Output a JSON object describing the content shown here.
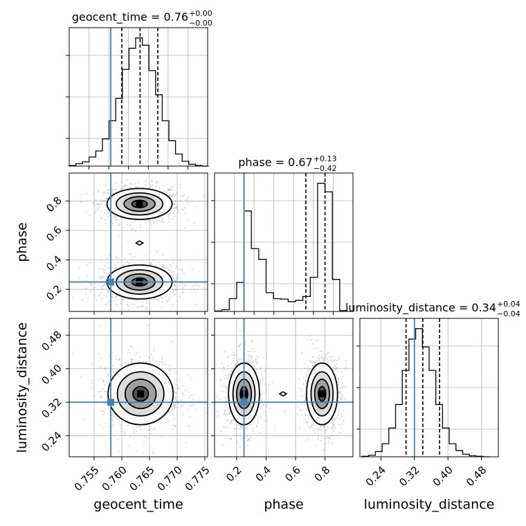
{
  "figure": {
    "kind": "corner-plot",
    "truth_color": "#4682b4",
    "grid": true,
    "scatter_color": "#9e9e9e",
    "contour_color": "#000000"
  },
  "chart_data": [
    {
      "type": "histogram",
      "parameter": "geocent_time",
      "title": {
        "main": "geocent_time = 0.76",
        "sup": "+0.00",
        "sub": "−0.00"
      },
      "xlim": [
        0.7505,
        0.7755
      ],
      "truth": 0.758,
      "quantiles": [
        0.76,
        0.7633,
        0.7665
      ],
      "bins": [
        0.7505,
        0.7517,
        0.7529,
        0.7541,
        0.7553,
        0.7565,
        0.7577,
        0.7589,
        0.7601,
        0.7613,
        0.7625,
        0.7637,
        0.7649,
        0.7661,
        0.7673,
        0.7685,
        0.7697,
        0.7709,
        0.7721,
        0.7733,
        0.7745,
        0.7757
      ],
      "counts": [
        1,
        4,
        7,
        15,
        25,
        45,
        75,
        112,
        160,
        195,
        212,
        200,
        158,
        118,
        75,
        42,
        20,
        8,
        3,
        1,
        0
      ]
    },
    {
      "type": "scatter-contour",
      "x": "geocent_time",
      "y": "phase",
      "xlim": [
        0.7505,
        0.7755
      ],
      "ylim": [
        0.05,
        0.99
      ],
      "ytick_labels": [
        "0.2",
        "0.4",
        "0.6",
        "0.8"
      ],
      "yticks": [
        0.2,
        0.4,
        0.6,
        0.8
      ],
      "ylabel": "phase",
      "truth": [
        0.758,
        0.25
      ],
      "modes": [
        {
          "center": [
            0.7632,
            0.78
          ],
          "spread": [
            0.0028,
            0.05
          ]
        },
        {
          "center": [
            0.7632,
            0.25
          ],
          "spread": [
            0.0028,
            0.055
          ]
        }
      ]
    },
    {
      "type": "histogram",
      "parameter": "phase",
      "title": {
        "main": "phase = 0.67",
        "sup": "+0.13",
        "sub": "−0.42"
      },
      "xlim": [
        0.05,
        0.99
      ],
      "truth": 0.25,
      "quantiles": [
        0.25,
        0.67,
        0.8
      ],
      "bins": [
        0.05,
        0.1,
        0.15,
        0.2,
        0.25,
        0.3,
        0.35,
        0.4,
        0.45,
        0.5,
        0.55,
        0.6,
        0.65,
        0.7,
        0.75,
        0.8,
        0.85,
        0.9,
        0.95
      ],
      "counts": [
        1,
        4,
        30,
        68,
        235,
        147,
        122,
        44,
        30,
        29,
        23,
        26,
        35,
        80,
        300,
        280,
        75,
        2
      ]
    },
    {
      "type": "scatter-contour",
      "x": "geocent_time",
      "y": "luminosity_distance",
      "xlim": [
        0.7505,
        0.7755
      ],
      "ylim": [
        0.19,
        0.52
      ],
      "xtick_labels": [
        "0.755",
        "0.760",
        "0.765",
        "0.770",
        "0.775"
      ],
      "xticks": [
        0.755,
        0.76,
        0.765,
        0.77,
        0.775
      ],
      "ytick_labels": [
        "0.24",
        "0.32",
        "0.40",
        "0.48"
      ],
      "yticks": [
        0.24,
        0.32,
        0.4,
        0.48
      ],
      "xlabel": "geocent_time",
      "ylabel": "luminosity_distance",
      "truth": [
        0.758,
        0.32
      ],
      "modes": [
        {
          "center": [
            0.7634,
            0.34
          ],
          "spread": [
            0.0028,
            0.035
          ]
        }
      ]
    },
    {
      "type": "scatter-contour",
      "x": "phase",
      "y": "luminosity_distance",
      "xlim": [
        0.05,
        0.99
      ],
      "ylim": [
        0.19,
        0.52
      ],
      "xtick_labels": [
        "0.2",
        "0.4",
        "0.6",
        "0.8"
      ],
      "xticks": [
        0.2,
        0.4,
        0.6,
        0.8
      ],
      "xlabel": "phase",
      "truth": [
        0.25,
        0.32
      ],
      "modes": [
        {
          "center": [
            0.25,
            0.34
          ],
          "spread": [
            0.05,
            0.035
          ]
        },
        {
          "center": [
            0.78,
            0.34
          ],
          "spread": [
            0.05,
            0.035
          ]
        }
      ]
    },
    {
      "type": "histogram",
      "parameter": "luminosity_distance",
      "title": {
        "main": "luminosity_distance = 0.34",
        "sup": "+0.04",
        "sub": "−0.04"
      },
      "xlim": [
        0.19,
        0.52
      ],
      "truth": 0.32,
      "quantiles": [
        0.3,
        0.34,
        0.38
      ],
      "xtick_labels": [
        "0.24",
        "0.32",
        "0.40",
        "0.48"
      ],
      "xticks": [
        0.24,
        0.32,
        0.4,
        0.48
      ],
      "xlabel": "luminosity_distance",
      "bins": [
        0.195,
        0.211,
        0.227,
        0.243,
        0.259,
        0.275,
        0.291,
        0.307,
        0.323,
        0.339,
        0.355,
        0.371,
        0.387,
        0.403,
        0.419,
        0.435,
        0.451,
        0.467,
        0.483,
        0.499
      ],
      "counts": [
        1,
        3,
        10,
        25,
        55,
        100,
        165,
        225,
        245,
        210,
        165,
        100,
        55,
        25,
        12,
        5,
        2,
        1,
        0
      ]
    }
  ]
}
